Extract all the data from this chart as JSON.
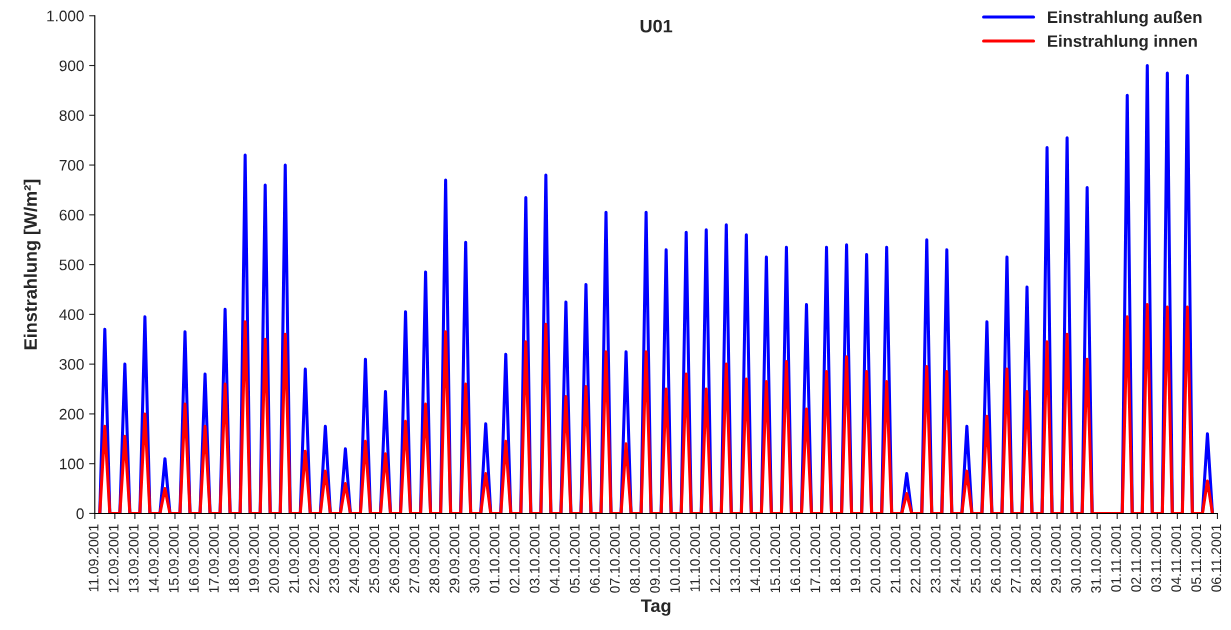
{
  "chart_data": {
    "type": "line",
    "title": "U01",
    "xlabel": "Tag",
    "ylabel": "Einstrahlung [W/m²]",
    "x": [
      "2001-09-11T06:00",
      "2001-09-11T12:00",
      "2001-09-11T18:00",
      "2001-09-12T06:00",
      "2001-09-12T12:00",
      "2001-09-12T18:00",
      "2001-09-13T06:00",
      "2001-09-13T12:00",
      "2001-09-13T18:00",
      "2001-09-14T06:00",
      "2001-09-14T12:00",
      "2001-09-14T18:00",
      "2001-09-15T06:00",
      "2001-09-15T12:00",
      "2001-09-15T18:00",
      "2001-09-16T06:00",
      "2001-09-16T12:00",
      "2001-09-16T18:00",
      "2001-09-17T06:00",
      "2001-09-17T12:00",
      "2001-09-17T18:00",
      "2001-09-18T06:00",
      "2001-09-18T12:00",
      "2001-09-18T18:00",
      "2001-09-19T06:00",
      "2001-09-19T12:00",
      "2001-09-19T18:00",
      "2001-09-20T06:00",
      "2001-09-20T12:00",
      "2001-09-20T18:00",
      "2001-09-21T06:00",
      "2001-09-21T12:00",
      "2001-09-21T18:00",
      "2001-09-22T06:00",
      "2001-09-22T12:00",
      "2001-09-22T18:00",
      "2001-09-23T06:00",
      "2001-09-23T12:00",
      "2001-09-23T18:00",
      "2001-09-24T06:00",
      "2001-09-24T12:00",
      "2001-09-24T18:00",
      "2001-09-25T06:00",
      "2001-09-25T12:00",
      "2001-09-25T18:00",
      "2001-09-26T06:00",
      "2001-09-26T12:00",
      "2001-09-26T18:00",
      "2001-09-27T06:00",
      "2001-09-27T12:00",
      "2001-09-27T18:00",
      "2001-09-28T06:00",
      "2001-09-28T12:00",
      "2001-09-28T18:00",
      "2001-09-29T06:00",
      "2001-09-29T12:00",
      "2001-09-29T18:00",
      "2001-09-30T06:00",
      "2001-09-30T12:00",
      "2001-09-30T18:00",
      "2001-10-01T06:00",
      "2001-10-01T12:00",
      "2001-10-01T18:00",
      "2001-10-02T06:00",
      "2001-10-02T12:00",
      "2001-10-02T18:00",
      "2001-10-03T06:00",
      "2001-10-03T12:00",
      "2001-10-03T18:00",
      "2001-10-04T06:00",
      "2001-10-04T12:00",
      "2001-10-04T18:00",
      "2001-10-05T06:00",
      "2001-10-05T12:00",
      "2001-10-05T18:00",
      "2001-10-06T06:00",
      "2001-10-06T12:00",
      "2001-10-06T18:00",
      "2001-10-07T06:00",
      "2001-10-07T12:00",
      "2001-10-07T18:00",
      "2001-10-08T06:00",
      "2001-10-08T12:00",
      "2001-10-08T18:00",
      "2001-10-09T06:00",
      "2001-10-09T12:00",
      "2001-10-09T18:00",
      "2001-10-10T06:00",
      "2001-10-10T12:00",
      "2001-10-10T18:00",
      "2001-10-11T06:00",
      "2001-10-11T12:00",
      "2001-10-11T18:00",
      "2001-10-12T06:00",
      "2001-10-12T12:00",
      "2001-10-12T18:00",
      "2001-10-13T06:00",
      "2001-10-13T12:00",
      "2001-10-13T18:00",
      "2001-10-14T06:00",
      "2001-10-14T12:00",
      "2001-10-14T18:00",
      "2001-10-15T06:00",
      "2001-10-15T12:00",
      "2001-10-15T18:00",
      "2001-10-16T06:00",
      "2001-10-16T12:00",
      "2001-10-16T18:00",
      "2001-10-17T06:00",
      "2001-10-17T12:00",
      "2001-10-17T18:00",
      "2001-10-18T06:00",
      "2001-10-18T12:00",
      "2001-10-18T18:00",
      "2001-10-19T06:00",
      "2001-10-19T12:00",
      "2001-10-19T18:00",
      "2001-10-20T06:00",
      "2001-10-20T12:00",
      "2001-10-20T18:00",
      "2001-10-21T06:00",
      "2001-10-21T12:00",
      "2001-10-21T18:00",
      "2001-10-22T06:00",
      "2001-10-22T12:00",
      "2001-10-22T18:00",
      "2001-10-23T06:00",
      "2001-10-23T12:00",
      "2001-10-23T18:00",
      "2001-10-24T06:00",
      "2001-10-24T12:00",
      "2001-10-24T18:00",
      "2001-10-25T06:00",
      "2001-10-25T12:00",
      "2001-10-25T18:00",
      "2001-10-26T06:00",
      "2001-10-26T12:00",
      "2001-10-26T18:00",
      "2001-10-27T06:00",
      "2001-10-27T12:00",
      "2001-10-27T18:00",
      "2001-10-28T06:00",
      "2001-10-28T12:00",
      "2001-10-28T18:00",
      "2001-10-29T06:00",
      "2001-10-29T12:00",
      "2001-10-29T18:00",
      "2001-10-30T06:00",
      "2001-10-30T12:00",
      "2001-10-30T18:00",
      "2001-10-31T06:00",
      "2001-10-31T12:00",
      "2001-10-31T18:00",
      "2001-11-01T06:00",
      "2001-11-01T12:00",
      "2001-11-01T18:00",
      "2001-11-02T06:00",
      "2001-11-02T12:00",
      "2001-11-02T18:00",
      "2001-11-03T06:00",
      "2001-11-03T12:00",
      "2001-11-03T18:00",
      "2001-11-04T06:00",
      "2001-11-04T12:00",
      "2001-11-04T18:00",
      "2001-11-05T06:00",
      "2001-11-05T12:00",
      "2001-11-05T18:00"
    ],
    "series": [
      {
        "name": "Einstrahlung außen",
        "color": "#0000ff",
        "values": [
          0,
          370,
          0,
          0,
          300,
          0,
          0,
          395,
          0,
          0,
          110,
          0,
          0,
          365,
          0,
          0,
          280,
          0,
          0,
          410,
          0,
          0,
          720,
          0,
          0,
          660,
          0,
          0,
          700,
          0,
          0,
          290,
          0,
          0,
          175,
          0,
          0,
          130,
          0,
          0,
          310,
          0,
          0,
          245,
          0,
          0,
          405,
          0,
          0,
          485,
          0,
          0,
          670,
          0,
          0,
          545,
          0,
          0,
          180,
          0,
          0,
          320,
          0,
          0,
          635,
          0,
          0,
          680,
          0,
          0,
          425,
          0,
          0,
          460,
          0,
          0,
          605,
          0,
          0,
          325,
          0,
          0,
          605,
          0,
          0,
          530,
          0,
          0,
          565,
          0,
          0,
          570,
          0,
          0,
          580,
          0,
          0,
          560,
          0,
          0,
          515,
          0,
          0,
          535,
          0,
          0,
          420,
          0,
          0,
          535,
          0,
          0,
          540,
          0,
          0,
          520,
          0,
          0,
          535,
          0,
          0,
          80,
          0,
          0,
          550,
          0,
          0,
          530,
          0,
          0,
          175,
          0,
          0,
          385,
          0,
          0,
          515,
          0,
          0,
          455,
          0,
          0,
          735,
          0,
          0,
          755,
          0,
          0,
          655,
          0,
          0,
          0,
          0,
          0,
          840,
          0,
          0,
          900,
          0,
          0,
          885,
          0,
          0,
          880,
          0,
          0,
          160,
          0
        ]
      },
      {
        "name": "Einstrahlung innen",
        "color": "#ff0000",
        "values": [
          0,
          175,
          0,
          0,
          155,
          0,
          0,
          200,
          0,
          0,
          50,
          0,
          0,
          220,
          0,
          0,
          175,
          0,
          0,
          260,
          0,
          0,
          385,
          0,
          0,
          350,
          0,
          0,
          360,
          0,
          0,
          125,
          0,
          0,
          85,
          0,
          0,
          60,
          0,
          0,
          145,
          0,
          0,
          120,
          0,
          0,
          185,
          0,
          0,
          220,
          0,
          0,
          365,
          0,
          0,
          260,
          0,
          0,
          80,
          0,
          0,
          145,
          0,
          0,
          345,
          0,
          0,
          380,
          0,
          0,
          235,
          0,
          0,
          255,
          0,
          0,
          325,
          0,
          0,
          140,
          0,
          0,
          325,
          0,
          0,
          250,
          0,
          0,
          280,
          0,
          0,
          250,
          0,
          0,
          300,
          0,
          0,
          270,
          0,
          0,
          265,
          0,
          0,
          305,
          0,
          0,
          210,
          0,
          0,
          285,
          0,
          0,
          315,
          0,
          0,
          285,
          0,
          0,
          265,
          0,
          0,
          40,
          0,
          0,
          295,
          0,
          0,
          285,
          0,
          0,
          85,
          0,
          0,
          195,
          0,
          0,
          290,
          0,
          0,
          245,
          0,
          0,
          345,
          0,
          0,
          360,
          0,
          0,
          310,
          0,
          0,
          0,
          0,
          0,
          395,
          0,
          0,
          420,
          0,
          0,
          415,
          0,
          0,
          415,
          0,
          0,
          65,
          0
        ]
      }
    ],
    "xlim": [
      "2001-09-11",
      "2001-11-06"
    ],
    "xticks": [
      {
        "value": "2001-09-11",
        "label": "11.09.2001"
      },
      {
        "value": "2001-09-12",
        "label": "12.09.2001"
      },
      {
        "value": "2001-09-13",
        "label": "13.09.2001"
      },
      {
        "value": "2001-09-14",
        "label": "14.09.2001"
      },
      {
        "value": "2001-09-15",
        "label": "15.09.2001"
      },
      {
        "value": "2001-09-16",
        "label": "16.09.2001"
      },
      {
        "value": "2001-09-17",
        "label": "17.09.2001"
      },
      {
        "value": "2001-09-18",
        "label": "18.09.2001"
      },
      {
        "value": "2001-09-19",
        "label": "19.09.2001"
      },
      {
        "value": "2001-09-20",
        "label": "20.09.2001"
      },
      {
        "value": "2001-09-21",
        "label": "21.09.2001"
      },
      {
        "value": "2001-09-22",
        "label": "22.09.2001"
      },
      {
        "value": "2001-09-23",
        "label": "23.09.2001"
      },
      {
        "value": "2001-09-24",
        "label": "24.09.2001"
      },
      {
        "value": "2001-09-25",
        "label": "25.09.2001"
      },
      {
        "value": "2001-09-26",
        "label": "26.09.2001"
      },
      {
        "value": "2001-09-27",
        "label": "27.09.2001"
      },
      {
        "value": "2001-09-28",
        "label": "28.09.2001"
      },
      {
        "value": "2001-09-29",
        "label": "29.09.2001"
      },
      {
        "value": "2001-09-30",
        "label": "30.09.2001"
      },
      {
        "value": "2001-10-01",
        "label": "01.10.2001"
      },
      {
        "value": "2001-10-02",
        "label": "02.10.2001"
      },
      {
        "value": "2001-10-03",
        "label": "03.10.2001"
      },
      {
        "value": "2001-10-04",
        "label": "04.10.2001"
      },
      {
        "value": "2001-10-05",
        "label": "05.10.2001"
      },
      {
        "value": "2001-10-06",
        "label": "06.10.2001"
      },
      {
        "value": "2001-10-07",
        "label": "07.10.2001"
      },
      {
        "value": "2001-10-08",
        "label": "08.10.2001"
      },
      {
        "value": "2001-10-09",
        "label": "09.10.2001"
      },
      {
        "value": "2001-10-10",
        "label": "10.10.2001"
      },
      {
        "value": "2001-10-11",
        "label": "11.10.2001"
      },
      {
        "value": "2001-10-12",
        "label": "12.10.2001"
      },
      {
        "value": "2001-10-13",
        "label": "13.10.2001"
      },
      {
        "value": "2001-10-14",
        "label": "14.10.2001"
      },
      {
        "value": "2001-10-15",
        "label": "15.10.2001"
      },
      {
        "value": "2001-10-16",
        "label": "16.10.2001"
      },
      {
        "value": "2001-10-17",
        "label": "17.10.2001"
      },
      {
        "value": "2001-10-18",
        "label": "18.10.2001"
      },
      {
        "value": "2001-10-19",
        "label": "19.10.2001"
      },
      {
        "value": "2001-10-20",
        "label": "20.10.2001"
      },
      {
        "value": "2001-10-21",
        "label": "21.10.2001"
      },
      {
        "value": "2001-10-22",
        "label": "22.10.2001"
      },
      {
        "value": "2001-10-23",
        "label": "23.10.2001"
      },
      {
        "value": "2001-10-24",
        "label": "24.10.2001"
      },
      {
        "value": "2001-10-25",
        "label": "25.10.2001"
      },
      {
        "value": "2001-10-26",
        "label": "26.10.2001"
      },
      {
        "value": "2001-10-27",
        "label": "27.10.2001"
      },
      {
        "value": "2001-10-28",
        "label": "28.10.2001"
      },
      {
        "value": "2001-10-29",
        "label": "29.10.2001"
      },
      {
        "value": "2001-10-30",
        "label": "30.10.2001"
      },
      {
        "value": "2001-10-31",
        "label": "31.10.2001"
      },
      {
        "value": "2001-11-01",
        "label": "01.11.2001"
      },
      {
        "value": "2001-11-02",
        "label": "02.11.2001"
      },
      {
        "value": "2001-11-03",
        "label": "03.11.2001"
      },
      {
        "value": "2001-11-04",
        "label": "04.11.2001"
      },
      {
        "value": "2001-11-05",
        "label": "05.11.2001"
      },
      {
        "value": "2001-11-06",
        "label": "06.11.2001"
      }
    ],
    "ylim": [
      0,
      1000
    ],
    "yticks": [
      0,
      100,
      200,
      300,
      400,
      500,
      600,
      700,
      800,
      900,
      {
        "value": 1000,
        "label": "1.000"
      }
    ],
    "grid": false,
    "legend": "top right",
    "marker": "none",
    "line_style": "solid"
  }
}
